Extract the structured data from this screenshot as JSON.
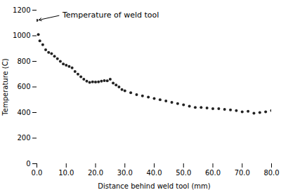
{
  "chart_data": {
    "type": "scatter",
    "x": [
      0.0,
      0.5,
      1.0,
      2.0,
      3.0,
      4.0,
      5.0,
      6.0,
      7.0,
      8.0,
      9.0,
      10.0,
      11.0,
      12.0,
      13.0,
      14.0,
      15.0,
      16.0,
      17.0,
      18.0,
      19.0,
      20.0,
      21.0,
      22.0,
      23.0,
      24.0,
      25.0,
      26.0,
      27.0,
      28.0,
      29.0,
      30.0,
      32.0,
      34.0,
      36.0,
      38.0,
      40.0,
      42.0,
      44.0,
      46.0,
      48.0,
      50.0,
      52.0,
      54.0,
      56.0,
      58.0,
      60.0,
      62.0,
      64.0,
      66.0,
      68.0,
      70.0,
      72.0,
      74.0,
      76.0,
      78.0,
      80.0
    ],
    "values": [
      1120,
      1010,
      960,
      930,
      890,
      870,
      860,
      840,
      820,
      800,
      780,
      770,
      760,
      750,
      720,
      700,
      680,
      660,
      645,
      635,
      640,
      638,
      640,
      645,
      650,
      648,
      660,
      630,
      615,
      600,
      580,
      570,
      555,
      540,
      530,
      520,
      510,
      500,
      490,
      480,
      470,
      460,
      450,
      440,
      440,
      435,
      430,
      430,
      425,
      420,
      415,
      405,
      410,
      395,
      400,
      405,
      415
    ],
    "color": "#222222",
    "marker": "point",
    "xlabel": "Distance behind weld tool (mm)",
    "ylabel": "Temperature (C)",
    "xlim": [
      0,
      80
    ],
    "ylim": [
      0,
      1200
    ],
    "xticks": [
      {
        "value": 0,
        "label": "0.0"
      },
      {
        "value": 10,
        "label": "10.0"
      },
      {
        "value": 20,
        "label": "20.0"
      },
      {
        "value": 30,
        "label": "30.0"
      },
      {
        "value": 40,
        "label": "40.0"
      },
      {
        "value": 50,
        "label": "50.0"
      },
      {
        "value": 60,
        "label": "60.0"
      },
      {
        "value": 70,
        "label": "70.0"
      },
      {
        "value": 80,
        "label": "80.0"
      }
    ],
    "yticks": [
      0,
      200,
      400,
      600,
      800,
      1000,
      1200
    ],
    "annotations": [
      {
        "text": "Temperature of weld tool",
        "xy": [
          0,
          1120
        ],
        "xytext": [
          8,
          1160
        ]
      }
    ]
  }
}
